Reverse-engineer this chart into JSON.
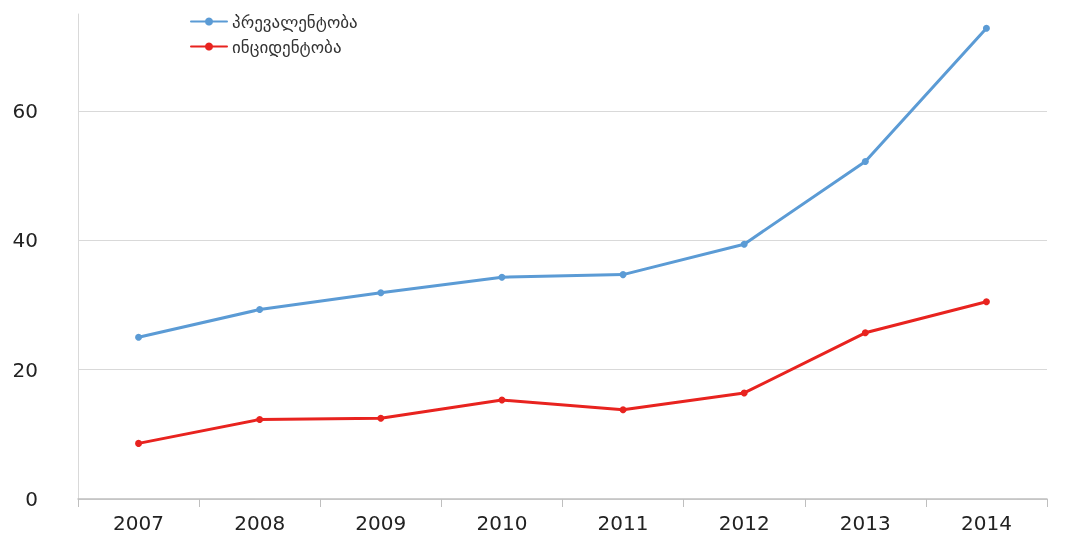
{
  "chart_data": {
    "type": "line",
    "categories": [
      "2007",
      "2008",
      "2009",
      "2010",
      "2011",
      "2012",
      "2013",
      "2014"
    ],
    "series": [
      {
        "name": "პრევალენტობა",
        "color": "#5b9bd5",
        "values": [
          25.0,
          29.3,
          31.9,
          34.3,
          34.7,
          39.4,
          52.2,
          72.8
        ]
      },
      {
        "name": "ინციდენტობა",
        "color": "#e8231f",
        "values": [
          8.6,
          12.3,
          12.5,
          15.3,
          13.8,
          16.4,
          25.7,
          30.5
        ]
      }
    ],
    "ylim": [
      0,
      75
    ],
    "yticks": [
      0,
      20,
      40,
      60
    ],
    "grid": "y",
    "legend": "top left",
    "marker": "circle",
    "line_style": "solid"
  }
}
